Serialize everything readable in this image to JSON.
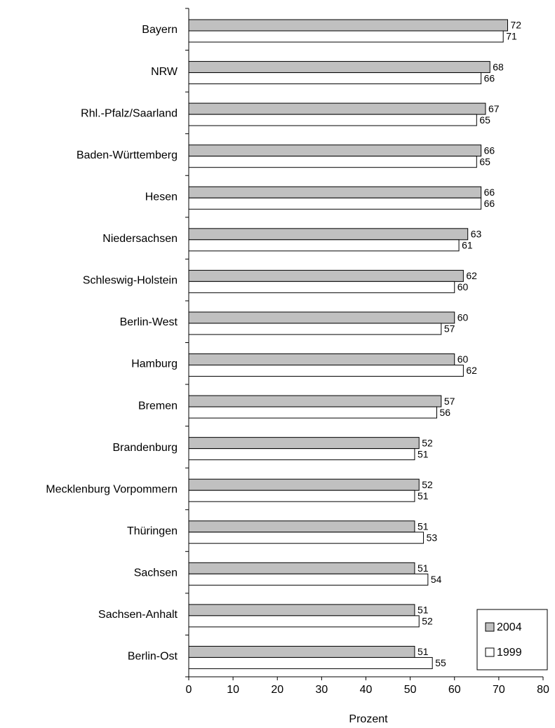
{
  "chart_data": {
    "type": "bar",
    "orientation": "horizontal",
    "x_label": "Prozent",
    "categories": [
      "Bayern",
      "NRW",
      "Rhl.-Pfalz/Saarland",
      "Baden-Württemberg",
      "Hesen",
      "Niedersachsen",
      "Schleswig-Holstein",
      "Berlin-West",
      "Hamburg",
      "Bremen",
      "Brandenburg",
      "Mecklenburg Vorpommern",
      "Thüringen",
      "Sachsen",
      "Sachsen-Anhalt",
      "Berlin-Ost"
    ],
    "series": [
      {
        "name": "2004",
        "color": "#c0c0c0",
        "values": [
          72,
          68,
          67,
          66,
          66,
          63,
          62,
          60,
          60,
          57,
          52,
          52,
          51,
          51,
          51,
          51
        ]
      },
      {
        "name": "1999",
        "color": "#ffffff",
        "values": [
          71,
          66,
          65,
          65,
          66,
          61,
          60,
          57,
          62,
          56,
          51,
          51,
          53,
          54,
          52,
          55
        ]
      }
    ],
    "xlim": [
      0,
      80
    ],
    "xticks": [
      0,
      10,
      20,
      30,
      40,
      50,
      60,
      70,
      80
    ],
    "legend": "bottom-right"
  }
}
